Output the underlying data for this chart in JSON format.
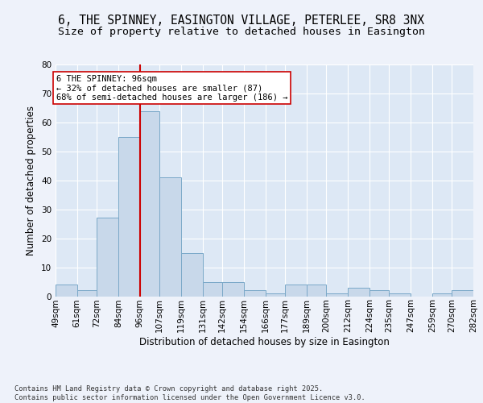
{
  "title_line1": "6, THE SPINNEY, EASINGTON VILLAGE, PETERLEE, SR8 3NX",
  "title_line2": "Size of property relative to detached houses in Easington",
  "xlabel": "Distribution of detached houses by size in Easington",
  "ylabel": "Number of detached properties",
  "bins": [
    49,
    61,
    72,
    84,
    96,
    107,
    119,
    131,
    142,
    154,
    166,
    177,
    189,
    200,
    212,
    224,
    235,
    247,
    259,
    270,
    282
  ],
  "counts": [
    4,
    2,
    27,
    55,
    64,
    41,
    15,
    5,
    5,
    2,
    1,
    4,
    4,
    1,
    3,
    2,
    1,
    0,
    1,
    2
  ],
  "bar_color": "#c8d8ea",
  "bar_edge_color": "#7aa8c8",
  "subject_value": 96,
  "subject_line_color": "#cc0000",
  "annotation_text": "6 THE SPINNEY: 96sqm\n← 32% of detached houses are smaller (87)\n68% of semi-detached houses are larger (186) →",
  "annotation_box_color": "#ffffff",
  "annotation_box_edge_color": "#cc0000",
  "plot_bg_color": "#dde8f5",
  "fig_bg_color": "#eef2fa",
  "grid_color": "#ffffff",
  "ylim": [
    0,
    80
  ],
  "yticks": [
    0,
    10,
    20,
    30,
    40,
    50,
    60,
    70,
    80
  ],
  "footer_text": "Contains HM Land Registry data © Crown copyright and database right 2025.\nContains public sector information licensed under the Open Government Licence v3.0.",
  "title_fontsize": 10.5,
  "subtitle_fontsize": 9.5,
  "axis_label_fontsize": 8.5,
  "tick_fontsize": 7.5,
  "annotation_fontsize": 7.5,
  "footer_fontsize": 6.2
}
